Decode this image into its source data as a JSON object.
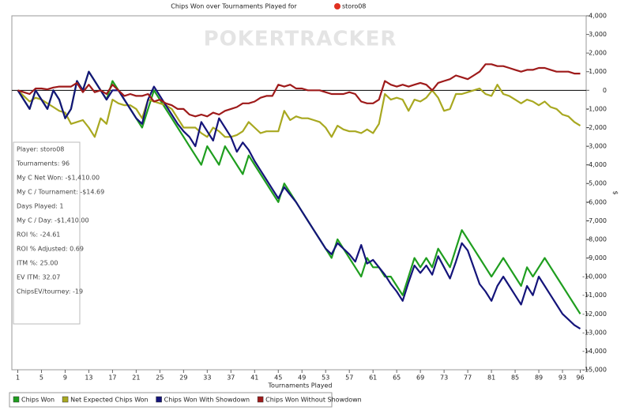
{
  "chart_data": {
    "type": "line",
    "title": "Chips Won over Tournaments Played for",
    "title_player": "storo08",
    "watermark": "POKERTRACKER",
    "x_label": "Tournaments Played",
    "y_label": "$",
    "info_box": [
      "Player: storo08",
      "Tournaments: 96",
      "My C Net Won: -$1,410.00",
      "My C / Tournament: -$14.69",
      "Days Played: 1",
      "My C / Day: -$1,410.00",
      "ROI %: -24.61",
      "ROI % Adjusted: 0.69",
      "ITM %: 25.00",
      "EV ITM: 32.07",
      "ChipsEV/tourney: -19"
    ],
    "legend": "bottom",
    "grid": false,
    "x": [
      1,
      2,
      3,
      4,
      5,
      6,
      7,
      8,
      9,
      10,
      11,
      12,
      13,
      14,
      15,
      16,
      17,
      18,
      19,
      20,
      21,
      22,
      23,
      24,
      25,
      26,
      27,
      28,
      29,
      30,
      31,
      32,
      33,
      34,
      35,
      36,
      37,
      38,
      39,
      40,
      41,
      42,
      43,
      44,
      45,
      46,
      47,
      48,
      49,
      50,
      51,
      52,
      53,
      54,
      55,
      56,
      57,
      58,
      59,
      60,
      61,
      62,
      63,
      64,
      65,
      66,
      67,
      68,
      69,
      70,
      71,
      72,
      73,
      74,
      75,
      76,
      77,
      78,
      79,
      80,
      81,
      82,
      83,
      84,
      85,
      86,
      87,
      88,
      89,
      90,
      91,
      92,
      93,
      94,
      95,
      96
    ],
    "xlim": [
      0,
      97
    ],
    "xticks": [
      1,
      5,
      9,
      13,
      17,
      21,
      25,
      29,
      33,
      37,
      41,
      45,
      49,
      53,
      57,
      61,
      65,
      69,
      73,
      77,
      81,
      85,
      89,
      93,
      96
    ],
    "ylim": [
      -15000,
      4000
    ],
    "yticks": [
      {
        "value": -15000,
        "label": "-15,000"
      },
      {
        "value": -14000,
        "label": "-14,000"
      },
      {
        "value": -13000,
        "label": "-13,000"
      },
      {
        "value": -12000,
        "label": "-12,000"
      },
      {
        "value": -11000,
        "label": "-11,000"
      },
      {
        "value": -10000,
        "label": "-10,000"
      },
      {
        "value": -9000,
        "label": "-9,000"
      },
      {
        "value": -8000,
        "label": "-8,000"
      },
      {
        "value": -7000,
        "label": "-7,000"
      },
      {
        "value": -6000,
        "label": "-6,000"
      },
      {
        "value": -5000,
        "label": "-5,000"
      },
      {
        "value": -4000,
        "label": "-4,000"
      },
      {
        "value": -3000,
        "label": "-3,000"
      },
      {
        "value": -2000,
        "label": "-2,000"
      },
      {
        "value": -1000,
        "label": "-1,000"
      },
      0,
      {
        "value": 1000,
        "label": "1,000"
      },
      {
        "value": 2000,
        "label": "2,000"
      },
      {
        "value": 3000,
        "label": "3,000"
      },
      {
        "value": 4000,
        "label": "4,000"
      }
    ],
    "series": [
      {
        "name": "Chips Won",
        "color": "#1f9e1f",
        "values": [
          0,
          -500,
          -1000,
          0,
          -500,
          -1000,
          0,
          -500,
          -1500,
          -1000,
          500,
          0,
          1000,
          500,
          0,
          -500,
          500,
          0,
          -500,
          -1000,
          -1500,
          -2000,
          -1000,
          0,
          -500,
          -1000,
          -1500,
          -2000,
          -2500,
          -3000,
          -3500,
          -4000,
          -3000,
          -3500,
          -4000,
          -3000,
          -3500,
          -4000,
          -4500,
          -3500,
          -4000,
          -4500,
          -5000,
          -5500,
          -6000,
          -5000,
          -5500,
          -6000,
          -6500,
          -7000,
          -7500,
          -8000,
          -8500,
          -9000,
          -8000,
          -8500,
          -9000,
          -9500,
          -10000,
          -9000,
          -9500,
          -9500,
          -10000,
          -10000,
          -10500,
          -11000,
          -10000,
          -9000,
          -9500,
          -9000,
          -9500,
          -8500,
          -9000,
          -9500,
          -8500,
          -7500,
          -8000,
          -8500,
          -9000,
          -9500,
          -10000,
          -9500,
          -9000,
          -9500,
          -10000,
          -10500,
          -9500,
          -10000,
          -9500,
          -9000,
          -9500,
          -10000,
          -10500,
          -11000,
          -11500,
          -12000
        ]
      },
      {
        "name": "Net Expected Chips Won",
        "color": "#a8a820",
        "values": [
          0,
          -300,
          -600,
          -400,
          -500,
          -700,
          -900,
          -1100,
          -1200,
          -1800,
          -1700,
          -1600,
          -2000,
          -2500,
          -1500,
          -1800,
          -500,
          -700,
          -800,
          -800,
          -1000,
          -1500,
          -500,
          -600,
          -700,
          -800,
          -1000,
          -1500,
          -2000,
          -2000,
          -2000,
          -2300,
          -2500,
          -2000,
          -2200,
          -2500,
          -2500,
          -2400,
          -2200,
          -1700,
          -2000,
          -2300,
          -2200,
          -2200,
          -2200,
          -1100,
          -1600,
          -1400,
          -1500,
          -1500,
          -1600,
          -1700,
          -2000,
          -2500,
          -1900,
          -2100,
          -2200,
          -2200,
          -2300,
          -2100,
          -2300,
          -1800,
          -200,
          -500,
          -400,
          -500,
          -1100,
          -500,
          -600,
          -400,
          0,
          -400,
          -1100,
          -1000,
          -200,
          -200,
          -100,
          0,
          100,
          -200,
          -300,
          300,
          -200,
          -300,
          -500,
          -700,
          -500,
          -600,
          -800,
          -600,
          -900,
          -1000,
          -1300,
          -1400,
          -1700,
          -1900
        ]
      },
      {
        "name": "Chips Won With Showdown",
        "color": "#14147a",
        "values": [
          0,
          -500,
          -1000,
          0,
          -500,
          -1000,
          0,
          -500,
          -1500,
          -1000,
          500,
          0,
          1000,
          500,
          0,
          -500,
          0,
          0,
          -500,
          -1000,
          -1500,
          -1800,
          -500,
          200,
          -300,
          -800,
          -1300,
          -1800,
          -2200,
          -2500,
          -3000,
          -1700,
          -2200,
          -2700,
          -1500,
          -2000,
          -2500,
          -3300,
          -2800,
          -3200,
          -3800,
          -4300,
          -4800,
          -5300,
          -5800,
          -5200,
          -5600,
          -6000,
          -6500,
          -7000,
          -7500,
          -8000,
          -8500,
          -8800,
          -8200,
          -8500,
          -8800,
          -9200,
          -8300,
          -9300,
          -9100,
          -9500,
          -9900,
          -10400,
          -10800,
          -11300,
          -10300,
          -9400,
          -9800,
          -9400,
          -9900,
          -8900,
          -9500,
          -10100,
          -9200,
          -8200,
          -8600,
          -9500,
          -10400,
          -10800,
          -11300,
          -10500,
          -10000,
          -10500,
          -11000,
          -11500,
          -10500,
          -11000,
          -10000,
          -10500,
          -11000,
          -11500,
          -12000,
          -12300,
          -12600,
          -12800
        ]
      },
      {
        "name": "Chips Won Without Showdown",
        "color": "#9e1a1a",
        "values": [
          0,
          -100,
          -200,
          100,
          100,
          50,
          150,
          200,
          200,
          200,
          400,
          -100,
          300,
          -100,
          0,
          -200,
          300,
          0,
          -300,
          -200,
          -300,
          -300,
          -200,
          -600,
          -500,
          -700,
          -800,
          -1000,
          -1000,
          -1300,
          -1400,
          -1300,
          -1400,
          -1200,
          -1300,
          -1100,
          -1000,
          -900,
          -700,
          -700,
          -600,
          -400,
          -300,
          -300,
          300,
          200,
          300,
          100,
          100,
          0,
          0,
          0,
          -100,
          -200,
          -200,
          -200,
          -100,
          -200,
          -600,
          -700,
          -700,
          -500,
          500,
          300,
          200,
          300,
          200,
          300,
          400,
          300,
          0,
          400,
          500,
          600,
          800,
          700,
          600,
          800,
          1000,
          1400,
          1400,
          1300,
          1300,
          1200,
          1100,
          1000,
          1100,
          1100,
          1200,
          1200,
          1100,
          1000,
          1000,
          1000,
          900,
          900
        ]
      }
    ]
  }
}
